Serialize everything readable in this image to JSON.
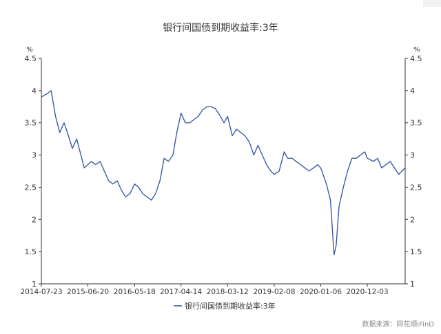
{
  "chart_data": {
    "type": "line",
    "title": "银行间国债到期收益率:3年",
    "ylabel_left": "%",
    "ylabel_right": "%",
    "ylim": [
      1,
      4.5
    ],
    "yticks": [
      "1",
      "1.5",
      "2",
      "2.5",
      "3",
      "3.5",
      "4",
      "4.5"
    ],
    "x_ticks": [
      "2014-07-23",
      "2015-06-20",
      "2016-05-18",
      "2017-04-14",
      "2018-03-12",
      "2019-02-08",
      "2020-01-06",
      "2020-12-03"
    ],
    "x_range": [
      "2014-07-23",
      "2021-08-30"
    ],
    "grid": false,
    "legend": "bottom-center",
    "series": [
      {
        "name": "银行间国债到期收益率:3年",
        "color": "#3a5ba8",
        "x": [
          "2014-07-23",
          "2014-09-01",
          "2014-10-01",
          "2014-11-01",
          "2014-12-01",
          "2015-01-01",
          "2015-02-01",
          "2015-03-01",
          "2015-04-01",
          "2015-05-01",
          "2015-05-25",
          "2015-06-20",
          "2015-07-15",
          "2015-08-15",
          "2015-09-15",
          "2015-10-15",
          "2015-11-15",
          "2015-12-15",
          "2016-01-15",
          "2016-02-15",
          "2016-03-15",
          "2016-04-15",
          "2016-05-18",
          "2016-06-15",
          "2016-07-15",
          "2016-08-15",
          "2016-09-15",
          "2016-10-15",
          "2016-11-15",
          "2016-12-15",
          "2017-01-15",
          "2017-02-15",
          "2017-03-15",
          "2017-04-14",
          "2017-05-15",
          "2017-06-15",
          "2017-07-15",
          "2017-08-15",
          "2017-09-15",
          "2017-10-15",
          "2017-11-15",
          "2017-12-15",
          "2018-01-15",
          "2018-02-15",
          "2018-03-12",
          "2018-04-15",
          "2018-05-15",
          "2018-06-15",
          "2018-07-15",
          "2018-08-15",
          "2018-09-15",
          "2018-10-15",
          "2018-11-15",
          "2018-12-15",
          "2019-01-15",
          "2019-02-08",
          "2019-03-15",
          "2019-04-20",
          "2019-05-15",
          "2019-06-15",
          "2019-07-15",
          "2019-08-15",
          "2019-09-15",
          "2019-10-15",
          "2019-11-15",
          "2019-12-15",
          "2020-01-06",
          "2020-02-15",
          "2020-03-15",
          "2020-04-10",
          "2020-04-25",
          "2020-05-15",
          "2020-06-15",
          "2020-07-15",
          "2020-08-15",
          "2020-09-15",
          "2020-10-15",
          "2020-11-15",
          "2020-12-03",
          "2021-01-15",
          "2021-02-15",
          "2021-03-15",
          "2021-04-15",
          "2021-05-15",
          "2021-06-15",
          "2021-07-15",
          "2021-08-30"
        ],
        "values": [
          3.9,
          3.95,
          4.0,
          3.6,
          3.35,
          3.5,
          3.3,
          3.1,
          3.25,
          3.0,
          2.8,
          2.85,
          2.9,
          2.85,
          2.9,
          2.75,
          2.6,
          2.55,
          2.6,
          2.45,
          2.35,
          2.4,
          2.55,
          2.5,
          2.4,
          2.35,
          2.3,
          2.4,
          2.6,
          2.95,
          2.9,
          3.0,
          3.35,
          3.65,
          3.5,
          3.5,
          3.55,
          3.6,
          3.7,
          3.75,
          3.75,
          3.72,
          3.62,
          3.5,
          3.6,
          3.3,
          3.4,
          3.35,
          3.3,
          3.2,
          3.0,
          3.15,
          3.0,
          2.85,
          2.75,
          2.7,
          2.75,
          3.05,
          2.95,
          2.95,
          2.9,
          2.85,
          2.8,
          2.75,
          2.8,
          2.85,
          2.8,
          2.55,
          2.3,
          1.45,
          1.6,
          2.2,
          2.5,
          2.75,
          2.95,
          2.95,
          3.0,
          3.05,
          2.95,
          2.9,
          2.95,
          2.8,
          2.85,
          2.9,
          2.8,
          2.7,
          2.8
        ]
      }
    ]
  },
  "footer": {
    "source": "数据来源：同花顺iFinD"
  }
}
